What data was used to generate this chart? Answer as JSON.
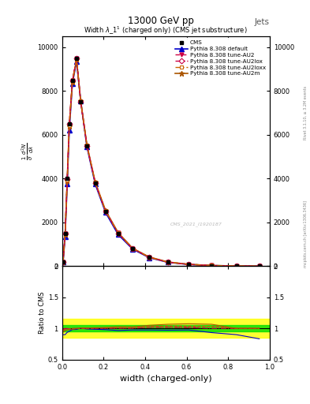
{
  "title_top": "13000 GeV pp",
  "title_right": "Jets",
  "plot_title": "Widthλ_1¹ (charged only) (CMS jet substructure)",
  "xlabel": "width (charged-only)",
  "ylabel_ratio": "Ratio to CMS",
  "right_label": "Rivet 3.1.10, ≥ 3.2M events",
  "right_label2": "mcplots.cern.ch [arXiv:1306.3436]",
  "watermark": "CMS_2021_I1920187",
  "legend_entries": [
    "CMS",
    "Pythia 8.308 default",
    "Pythia 8.308 tune-AU2",
    "Pythia 8.308 tune-AU2lox",
    "Pythia 8.308 tune-AU2loxx",
    "Pythia 8.308 tune-AU2m"
  ],
  "cms_color": "#000000",
  "default_color": "#0000cc",
  "au2_color": "#cc0044",
  "au2lox_color": "#cc0044",
  "au2loxx_color": "#cc6600",
  "au2m_color": "#aa5500",
  "x_data": [
    0.005,
    0.015,
    0.025,
    0.035,
    0.05,
    0.07,
    0.09,
    0.12,
    0.16,
    0.21,
    0.27,
    0.34,
    0.42,
    0.51,
    0.61,
    0.72,
    0.84,
    0.95
  ],
  "cms_y": [
    200,
    1500,
    4000,
    6500,
    8500,
    9500,
    7500,
    5500,
    3800,
    2500,
    1500,
    800,
    400,
    180,
    80,
    30,
    10,
    3
  ],
  "default_y": [
    180,
    1350,
    3750,
    6200,
    8350,
    9350,
    7550,
    5450,
    3750,
    2450,
    1450,
    780,
    390,
    175,
    78,
    28,
    9,
    2.5
  ],
  "au2_y": [
    195,
    1490,
    3970,
    6470,
    8470,
    9490,
    7520,
    5510,
    3810,
    2510,
    1510,
    805,
    410,
    185,
    82,
    31,
    10,
    3
  ],
  "au2lox_y": [
    198,
    1500,
    3990,
    6490,
    8490,
    9495,
    7510,
    5505,
    3805,
    2505,
    1505,
    802,
    407,
    183,
    81,
    30,
    10,
    3
  ],
  "au2loxx_y": [
    193,
    1470,
    3940,
    6440,
    8440,
    9470,
    7530,
    5520,
    3820,
    2520,
    1520,
    810,
    412,
    187,
    83,
    31,
    10,
    3
  ],
  "au2m_y": [
    188,
    1450,
    3900,
    6400,
    8400,
    9450,
    7550,
    5540,
    3840,
    2540,
    1540,
    820,
    420,
    192,
    86,
    32,
    10,
    3
  ],
  "ylim_main": [
    0,
    10500
  ],
  "ylim_ratio": [
    0.5,
    2.0
  ],
  "xlim": [
    0.0,
    1.0
  ],
  "ratio_green_band": 0.05,
  "ratio_yellow_band": 0.15,
  "yticks_main": [
    0,
    2000,
    4000,
    6000,
    8000,
    10000
  ],
  "yticks_ratio": [
    0.5,
    1.0,
    1.5,
    2.0
  ],
  "ytick_labels_main": [
    "0",
    "2000",
    "4000",
    "6000",
    "8000",
    "10000"
  ]
}
